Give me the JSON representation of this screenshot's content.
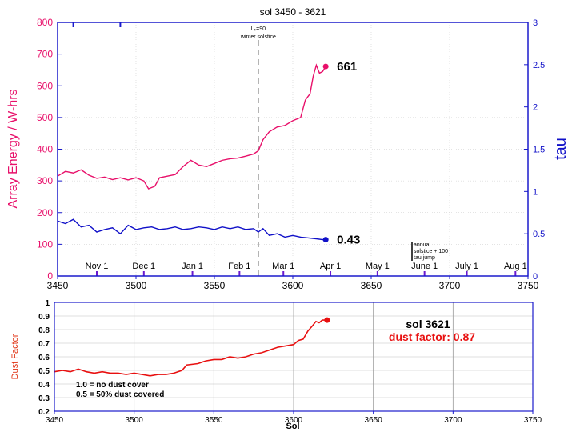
{
  "chart_data": [
    {
      "type": "line",
      "title": "sol 3450 - 3621",
      "xlabel": "",
      "ylabel": "Array Energy / W-hrs",
      "y2label": "tau",
      "xlim": [
        3450,
        3750
      ],
      "ylim": [
        0,
        800
      ],
      "y2lim": [
        0,
        3
      ],
      "x_ticks": [
        3450,
        3500,
        3550,
        3600,
        3650,
        3700,
        3750
      ],
      "y_ticks": [
        0,
        100,
        200,
        300,
        400,
        500,
        600,
        700,
        800
      ],
      "y2_ticks": [
        0,
        0.5,
        1,
        1.5,
        2,
        2.5,
        3
      ],
      "grid": true,
      "colors": {
        "energy": "#e8106a",
        "tau": "#1010c8",
        "axis": "#1a1acc"
      },
      "months": [
        {
          "label": "Nov 1",
          "sol": 3475
        },
        {
          "label": "Dec 1",
          "sol": 3505
        },
        {
          "label": "Jan 1",
          "sol": 3536
        },
        {
          "label": "Feb 1",
          "sol": 3566
        },
        {
          "label": "Mar 1",
          "sol": 3594
        },
        {
          "label": "Apr 1",
          "sol": 3624
        },
        {
          "label": "May 1",
          "sol": 3654
        },
        {
          "label": "June 1",
          "sol": 3684
        },
        {
          "label": "July 1",
          "sol": 3711
        },
        {
          "label": "Aug 1",
          "sol": 3742
        }
      ],
      "solstice": {
        "sol": 3578,
        "label_top": "Lₛ=90",
        "label_bottom": "winter solstice"
      },
      "marker_legend": [
        "annual",
        "solstice + 100",
        "tau jump"
      ],
      "series": [
        {
          "name": "Array Energy",
          "axis": "left",
          "x": [
            3450,
            3455,
            3460,
            3465,
            3470,
            3475,
            3480,
            3485,
            3490,
            3495,
            3500,
            3505,
            3508,
            3512,
            3515,
            3520,
            3525,
            3530,
            3535,
            3540,
            3545,
            3550,
            3555,
            3560,
            3565,
            3570,
            3575,
            3578,
            3581,
            3585,
            3590,
            3595,
            3600,
            3605,
            3608,
            3611,
            3613,
            3615,
            3617,
            3619,
            3621
          ],
          "y": [
            315,
            330,
            325,
            335,
            318,
            308,
            312,
            304,
            310,
            303,
            310,
            300,
            275,
            283,
            310,
            315,
            320,
            345,
            365,
            350,
            345,
            355,
            365,
            370,
            372,
            378,
            385,
            395,
            430,
            455,
            470,
            475,
            490,
            500,
            555,
            575,
            630,
            665,
            640,
            645,
            661
          ]
        },
        {
          "name": "tau",
          "axis": "right",
          "x": [
            3450,
            3455,
            3460,
            3465,
            3470,
            3475,
            3480,
            3485,
            3490,
            3495,
            3500,
            3505,
            3510,
            3515,
            3520,
            3525,
            3530,
            3535,
            3540,
            3545,
            3550,
            3555,
            3560,
            3565,
            3570,
            3575,
            3578,
            3581,
            3585,
            3590,
            3595,
            3600,
            3605,
            3610,
            3615,
            3619,
            3621
          ],
          "y": [
            0.65,
            0.62,
            0.67,
            0.58,
            0.6,
            0.52,
            0.55,
            0.57,
            0.5,
            0.6,
            0.55,
            0.57,
            0.58,
            0.55,
            0.56,
            0.58,
            0.55,
            0.56,
            0.58,
            0.57,
            0.55,
            0.58,
            0.56,
            0.58,
            0.55,
            0.56,
            0.52,
            0.56,
            0.48,
            0.5,
            0.46,
            0.48,
            0.46,
            0.45,
            0.44,
            0.43,
            0.43
          ]
        }
      ],
      "annotations": [
        {
          "series": "Array Energy",
          "text": "661"
        },
        {
          "series": "tau",
          "text": "0.43"
        }
      ]
    },
    {
      "type": "line",
      "title": "",
      "xlabel": "Sol",
      "ylabel": "Dust Factor",
      "xlim": [
        3450,
        3750
      ],
      "ylim": [
        0.2,
        1
      ],
      "x_ticks": [
        3450,
        3500,
        3550,
        3600,
        3650,
        3700,
        3750
      ],
      "y_ticks": [
        0.2,
        0.3,
        0.4,
        0.5,
        0.6,
        0.7,
        0.8,
        0.9,
        1
      ],
      "grid": true,
      "colors": {
        "line": "#e81010",
        "axis": "#1a1acc",
        "label": "#e03010"
      },
      "series": [
        {
          "name": "Dust Factor",
          "x": [
            3450,
            3455,
            3460,
            3465,
            3470,
            3475,
            3480,
            3485,
            3490,
            3495,
            3500,
            3505,
            3510,
            3515,
            3520,
            3525,
            3530,
            3533,
            3540,
            3545,
            3550,
            3555,
            3560,
            3565,
            3570,
            3575,
            3580,
            3585,
            3590,
            3595,
            3600,
            3603,
            3606,
            3609,
            3612,
            3614,
            3616,
            3618,
            3621
          ],
          "y": [
            0.49,
            0.5,
            0.49,
            0.51,
            0.49,
            0.48,
            0.49,
            0.48,
            0.48,
            0.47,
            0.48,
            0.47,
            0.46,
            0.47,
            0.47,
            0.48,
            0.5,
            0.54,
            0.55,
            0.57,
            0.58,
            0.58,
            0.6,
            0.59,
            0.6,
            0.62,
            0.63,
            0.65,
            0.67,
            0.68,
            0.69,
            0.72,
            0.73,
            0.79,
            0.83,
            0.86,
            0.85,
            0.87,
            0.87
          ]
        }
      ],
      "info": {
        "sol_label": "sol 3621",
        "dust_label": "dust factor: 0.87"
      },
      "legend_lines": [
        "1.0 = no dust cover",
        "0.5 = 50% dust covered"
      ]
    }
  ]
}
